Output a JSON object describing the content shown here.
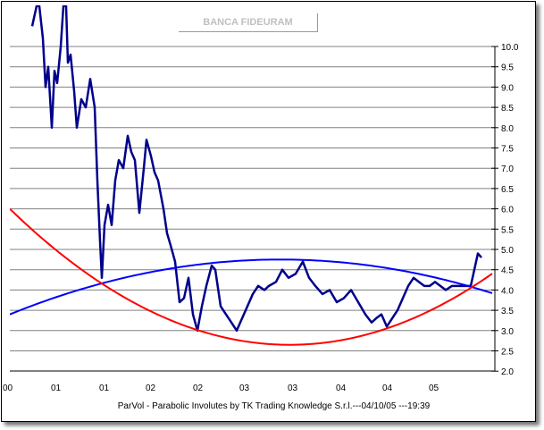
{
  "chart_data": {
    "type": "line",
    "title": "BANCA FIDEURAM",
    "footer": "ParVol - Parabolic Involutes by TK Trading Knowledge S.r.l.---04/10/05 ---19:39",
    "x_tick_labels": [
      "00",
      "01",
      "01",
      "02",
      "02",
      "03",
      "03",
      "04",
      "04",
      "05"
    ],
    "y_ticks": [
      "2.0",
      "2.5",
      "3.0",
      "3.5",
      "4.0",
      "4.5",
      "5.0",
      "5.5",
      "6.0",
      "6.5",
      "7.0",
      "7.5",
      "8.0",
      "8.5",
      "9.0",
      "9.5",
      "10.0"
    ],
    "ylim": [
      2.0,
      11.0
    ],
    "xlim": [
      0,
      543
    ],
    "y_axis_position": "right",
    "grid": true,
    "colors": {
      "price": "#00008b",
      "upper_parabola": "#0000ff",
      "lower_parabola": "#ff0000",
      "grid": "#808080"
    },
    "series": [
      {
        "name": "price",
        "points": [
          [
            25,
            10.5
          ],
          [
            30,
            11.0
          ],
          [
            33,
            11.0
          ],
          [
            37,
            10.2
          ],
          [
            40,
            9.0
          ],
          [
            43,
            9.5
          ],
          [
            47,
            8.0
          ],
          [
            50,
            9.4
          ],
          [
            53,
            9.1
          ],
          [
            57,
            10.0
          ],
          [
            60,
            11.0
          ],
          [
            63,
            11.0
          ],
          [
            65,
            9.6
          ],
          [
            68,
            9.8
          ],
          [
            72,
            8.9
          ],
          [
            75,
            8.0
          ],
          [
            80,
            8.7
          ],
          [
            85,
            8.5
          ],
          [
            90,
            9.2
          ],
          [
            95,
            8.5
          ],
          [
            98,
            6.7
          ],
          [
            101,
            5.2
          ],
          [
            103,
            4.3
          ],
          [
            106,
            5.6
          ],
          [
            110,
            6.1
          ],
          [
            114,
            5.6
          ],
          [
            118,
            6.7
          ],
          [
            122,
            7.2
          ],
          [
            127,
            7.0
          ],
          [
            132,
            7.8
          ],
          [
            136,
            7.4
          ],
          [
            140,
            7.2
          ],
          [
            145,
            5.9
          ],
          [
            150,
            7.0
          ],
          [
            153,
            7.7
          ],
          [
            158,
            7.3
          ],
          [
            162,
            6.9
          ],
          [
            166,
            6.7
          ],
          [
            172,
            6.0
          ],
          [
            176,
            5.4
          ],
          [
            180,
            5.1
          ],
          [
            185,
            4.7
          ],
          [
            190,
            3.7
          ],
          [
            195,
            3.8
          ],
          [
            200,
            4.3
          ],
          [
            205,
            3.4
          ],
          [
            210,
            3.0
          ],
          [
            215,
            3.6
          ],
          [
            220,
            4.1
          ],
          [
            226,
            4.6
          ],
          [
            230,
            4.5
          ],
          [
            236,
            3.6
          ],
          [
            242,
            3.4
          ],
          [
            248,
            3.2
          ],
          [
            254,
            3.0
          ],
          [
            260,
            3.3
          ],
          [
            266,
            3.6
          ],
          [
            272,
            3.9
          ],
          [
            278,
            4.1
          ],
          [
            285,
            4.0
          ],
          [
            290,
            4.1
          ],
          [
            298,
            4.2
          ],
          [
            305,
            4.5
          ],
          [
            312,
            4.3
          ],
          [
            320,
            4.4
          ],
          [
            328,
            4.7
          ],
          [
            335,
            4.3
          ],
          [
            342,
            4.1
          ],
          [
            350,
            3.9
          ],
          [
            358,
            4.0
          ],
          [
            366,
            3.7
          ],
          [
            374,
            3.8
          ],
          [
            382,
            4.0
          ],
          [
            390,
            3.7
          ],
          [
            398,
            3.4
          ],
          [
            405,
            3.2
          ],
          [
            410,
            3.3
          ],
          [
            416,
            3.4
          ],
          [
            422,
            3.1
          ],
          [
            428,
            3.3
          ],
          [
            434,
            3.5
          ],
          [
            440,
            3.8
          ],
          [
            446,
            4.1
          ],
          [
            452,
            4.3
          ],
          [
            458,
            4.2
          ],
          [
            464,
            4.1
          ],
          [
            470,
            4.1
          ],
          [
            476,
            4.2
          ],
          [
            482,
            4.1
          ],
          [
            488,
            4.0
          ],
          [
            495,
            4.1
          ],
          [
            502,
            4.1
          ],
          [
            510,
            4.1
          ],
          [
            516,
            4.1
          ],
          [
            520,
            4.5
          ],
          [
            524,
            4.9
          ],
          [
            528,
            4.8
          ]
        ]
      },
      {
        "name": "upper_parabola",
        "points": [
          [
            0,
            3.4
          ],
          [
            310,
            4.75
          ],
          [
            543,
            3.9
          ]
        ]
      },
      {
        "name": "lower_parabola",
        "points": [
          [
            0,
            6.0
          ],
          [
            310,
            2.65
          ],
          [
            543,
            4.45
          ]
        ]
      }
    ]
  }
}
